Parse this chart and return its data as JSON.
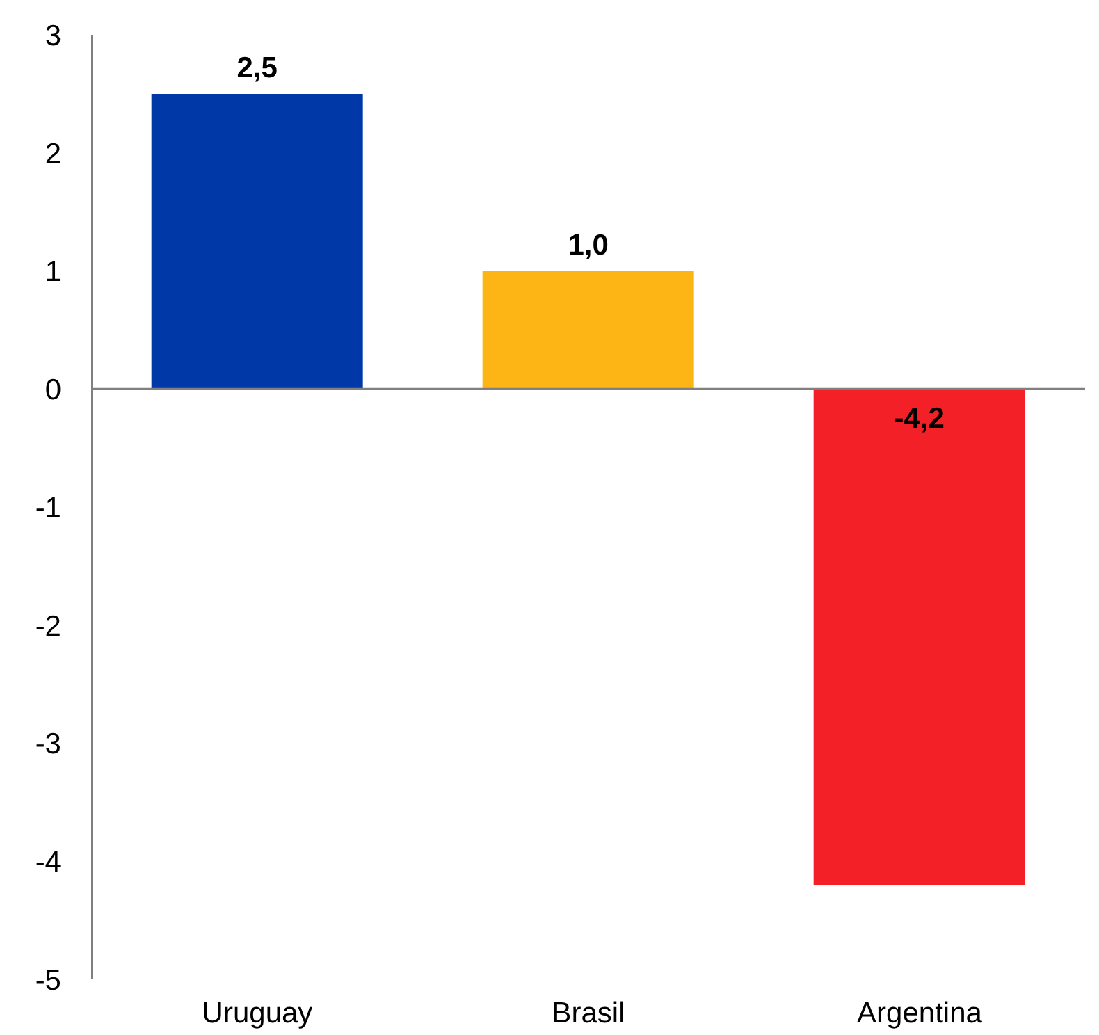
{
  "chart_data": {
    "type": "bar",
    "categories": [
      "Uruguay",
      "Brasil",
      "Argentina"
    ],
    "values": [
      2.5,
      1.0,
      -4.2
    ],
    "colors": [
      "#0038a8",
      "#fdb515",
      "#f42028"
    ],
    "value_labels": [
      "2,5",
      "1,0",
      "-4,2"
    ],
    "ylim": [
      -5,
      3
    ],
    "yticks": [
      -5,
      -4,
      -3,
      -2,
      -1,
      0,
      1,
      2,
      3
    ],
    "ref_lines": [
      {
        "axis": "y",
        "value": 0,
        "color": "#808080"
      }
    ],
    "grid": false,
    "legend": false
  }
}
